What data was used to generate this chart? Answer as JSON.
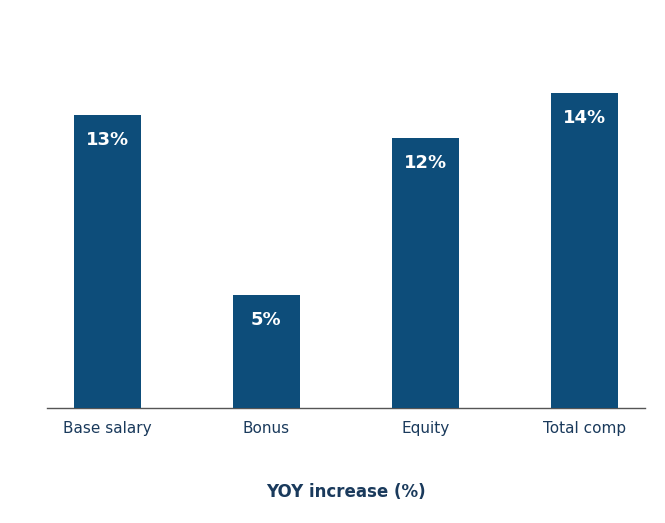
{
  "categories": [
    "Base salary",
    "Bonus",
    "Equity",
    "Total comp"
  ],
  "values": [
    13,
    5,
    12,
    14
  ],
  "bar_color": "#0d4d7a",
  "label_color": "#ffffff",
  "label_fontsize": 13,
  "label_fontweight": "bold",
  "xlabel": "YOY increase (%)",
  "xlabel_fontsize": 12,
  "xlabel_fontweight": "bold",
  "xlabel_color": "#1a3a5c",
  "tick_label_fontsize": 11,
  "tick_label_color": "#1a3a5c",
  "background_color": "#ffffff",
  "ylim": [
    0,
    16.5
  ],
  "bar_width": 0.42,
  "figsize": [
    6.65,
    5.23
  ],
  "dpi": 100
}
